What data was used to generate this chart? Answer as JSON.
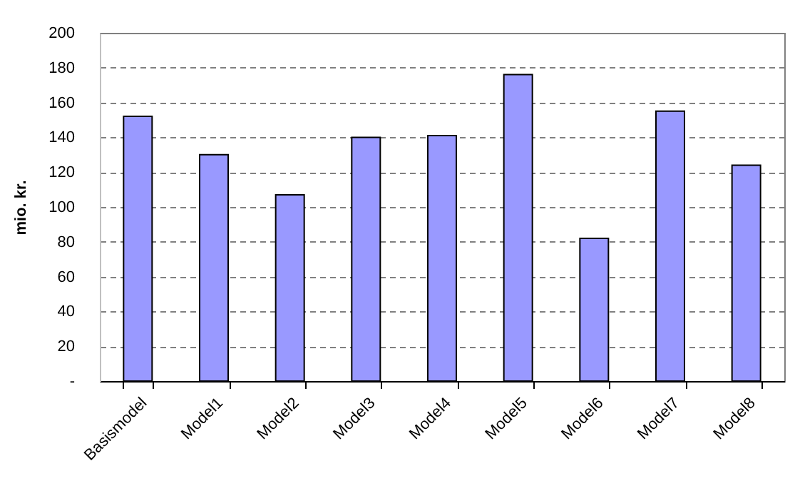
{
  "chart_data": {
    "type": "bar",
    "ylabel": "mio. kr.",
    "categories": [
      "Basismodel",
      "Model1",
      "Model2",
      "Model3",
      "Model4",
      "Model5",
      "Model6",
      "Model7",
      "Model8"
    ],
    "values": [
      152,
      130,
      107,
      140,
      141,
      176,
      82,
      155,
      124
    ],
    "color": "#9999ff",
    "ylim": [
      0,
      200
    ],
    "yticks": [
      {
        "value": 0,
        "label": "-"
      },
      20,
      40,
      60,
      80,
      100,
      120,
      140,
      160,
      180,
      200
    ],
    "grid": "y",
    "line_style": "dashed"
  }
}
